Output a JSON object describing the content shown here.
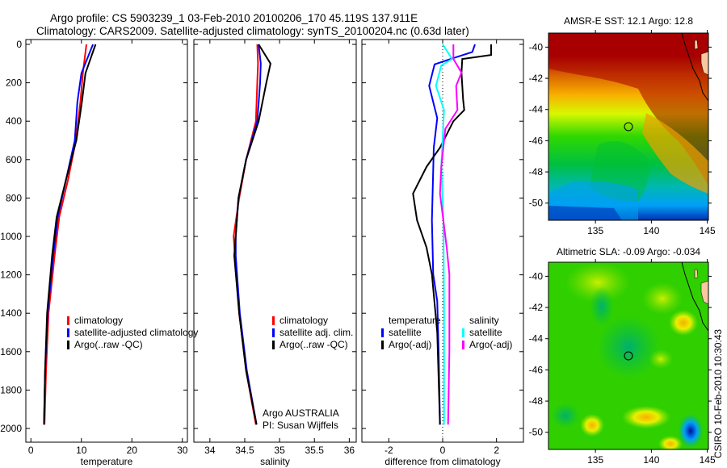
{
  "title_line1": "Argo profile: CS 5903239_1 03-Feb-2010 20100206_170 45.119S 137.911E",
  "title_line2": "Climatology: CARS2009. Satellite-adjusted climatology: synTS_20100204.nc (0.63d later)",
  "credit": "CSIRO 10-Feb-2010 10:30:43",
  "colors": {
    "climatology": "#ff0000",
    "satellite": "#0000ff",
    "argo": "#000000",
    "sal_satellite": "#00ffff",
    "sal_argo": "#ff00ff"
  },
  "chart_data": [
    {
      "type": "line",
      "xlabel": "temperature",
      "ylabel": "",
      "xlim": [
        -1,
        31
      ],
      "ylim": [
        2000,
        0
      ],
      "xticks": [
        "0",
        "10",
        "20",
        "30"
      ],
      "xtick_values": [
        0,
        10,
        20,
        30
      ],
      "yticks": [
        "0",
        "200",
        "400",
        "600",
        "800",
        "1000",
        "1200",
        "1400",
        "1600",
        "1800",
        "2000"
      ],
      "legend": [
        "climatology",
        "satellite-adjusted climatology",
        "Argo(..raw -QC)"
      ],
      "depth": [
        0,
        150,
        300,
        500,
        700,
        900,
        1100,
        1400,
        1700,
        1980
      ],
      "series": [
        {
          "name": "climatology",
          "color": "#ff0000",
          "values": [
            11.0,
            10.3,
            9.8,
            8.9,
            7.4,
            5.6,
            4.7,
            3.5,
            3.0,
            2.7
          ]
        },
        {
          "name": "satellite-adjusted climatology",
          "color": "#0000ff",
          "values": [
            12.3,
            10.0,
            9.2,
            8.7,
            7.0,
            5.3,
            4.4,
            3.3,
            2.8,
            2.6
          ]
        },
        {
          "name": "Argo(..raw -QC)",
          "color": "#000000",
          "values": [
            12.8,
            10.8,
            10.1,
            9.0,
            7.0,
            5.1,
            4.2,
            3.2,
            2.8,
            2.6
          ]
        }
      ]
    },
    {
      "type": "line",
      "xlabel": "salinity",
      "xlim": [
        33.77,
        36.1
      ],
      "ylim": [
        2000,
        0
      ],
      "xticks": [
        "34",
        "34.5",
        "35",
        "35.5",
        "36"
      ],
      "xtick_values": [
        34,
        34.5,
        35,
        35.5,
        36
      ],
      "legend": [
        "climatology",
        "satellite adj. clim.",
        "Argo(..raw -QC)"
      ],
      "annotation": [
        "Argo AUSTRALIA",
        "PI: Susan Wijffels"
      ],
      "depth": [
        0,
        100,
        200,
        400,
        600,
        800,
        1000,
        1100,
        1400,
        1700,
        1980
      ],
      "series": [
        {
          "name": "climatology",
          "color": "#ff0000",
          "values": [
            34.68,
            34.69,
            34.68,
            34.66,
            34.52,
            34.42,
            34.34,
            34.36,
            34.42,
            34.52,
            34.66
          ]
        },
        {
          "name": "satellite adj. clim.",
          "color": "#0000ff",
          "values": [
            34.7,
            34.73,
            34.72,
            34.68,
            34.52,
            34.41,
            34.37,
            34.37,
            34.43,
            34.53,
            34.67
          ]
        },
        {
          "name": "Argo(..raw -QC)",
          "color": "#000000",
          "values": [
            34.7,
            34.87,
            34.81,
            34.7,
            34.52,
            34.41,
            34.37,
            34.35,
            34.42,
            34.52,
            34.67
          ]
        }
      ]
    },
    {
      "type": "line",
      "xlabel": "difference from climatology",
      "xlim": [
        -3,
        3
      ],
      "ylim": [
        2000,
        0
      ],
      "xticks": [
        "-2",
        "0",
        "2"
      ],
      "xtick_values": [
        -2,
        0,
        2
      ],
      "legend_headers": [
        "temperature",
        "salinity"
      ],
      "legend": [
        "satellite",
        "Argo(-adj)",
        "satellite",
        "Argo(-adj)"
      ],
      "series": [
        {
          "name": "temperature satellite",
          "color": "#0000ff",
          "depth": [
            0,
            40,
            76,
            104,
            216,
            384,
            538,
            916,
            1197,
            1337,
            1600,
            1980
          ],
          "values": [
            1.2,
            1.1,
            0.3,
            -0.3,
            -0.5,
            -0.2,
            -0.33,
            -0.4,
            -0.35,
            -0.2,
            -0.15,
            -0.1
          ]
        },
        {
          "name": "temperature Argo(-adj)",
          "color": "#000000",
          "depth": [
            0,
            55,
            76,
            147,
            286,
            342,
            400,
            538,
            638,
            777,
            916,
            1057,
            1197,
            1500,
            1980
          ],
          "values": [
            1.8,
            1.8,
            0.73,
            0.7,
            0.76,
            0.8,
            0.4,
            -0.1,
            -0.6,
            -1.1,
            -0.95,
            -0.6,
            -0.4,
            -0.2,
            -0.1
          ]
        },
        {
          "name": "salinity satellite",
          "color": "#00ffff",
          "depth": [
            0,
            76,
            110,
            216,
            342,
            638,
            916,
            1400,
            1980
          ],
          "values": [
            0.0,
            0.35,
            -0.05,
            -0.25,
            0.05,
            -0.05,
            0.03,
            0.05,
            0.05
          ]
        },
        {
          "name": "salinity Argo(-adj)",
          "color": "#ff00ff",
          "depth": [
            0,
            76,
            147,
            216,
            342,
            440,
            638,
            777,
            1057,
            1197,
            1600,
            1980
          ],
          "values": [
            0.4,
            0.4,
            0.7,
            0.5,
            0.55,
            0.1,
            -0.05,
            -0.1,
            0.15,
            0.25,
            0.25,
            0.2
          ]
        }
      ]
    },
    {
      "type": "heatmap",
      "title": "AMSR-E SST: 12.1 Argo: 12.8",
      "xticks": [
        "135",
        "140",
        "145"
      ],
      "yticks": [
        "-40",
        "-42",
        "-44",
        "-46",
        "-48",
        "-50"
      ],
      "xlim": [
        130.8,
        145.1
      ],
      "ylim": [
        -51.1,
        -39.1
      ],
      "marker": {
        "lon": 137.911,
        "lat": -45.119
      }
    },
    {
      "type": "heatmap",
      "title": "Altimetric SLA: -0.09 Argo: -0.034",
      "xticks": [
        "135",
        "140",
        "145"
      ],
      "yticks": [
        "-40",
        "-42",
        "-44",
        "-46",
        "-48",
        "-50"
      ],
      "xlim": [
        130.8,
        145.1
      ],
      "ylim": [
        -51.1,
        -39.1
      ],
      "marker": {
        "lon": 137.911,
        "lat": -45.119
      }
    }
  ]
}
